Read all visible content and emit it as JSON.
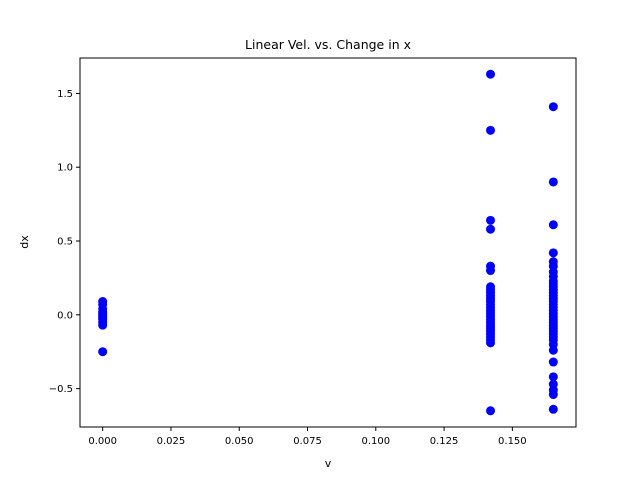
{
  "chart_data": {
    "type": "scatter",
    "title": "Linear Vel. vs. Change in x",
    "xlabel": "v",
    "ylabel": "dx",
    "xlim": [
      -0.0083,
      0.1733
    ],
    "ylim": [
      -0.76,
      1.74
    ],
    "xticks": [
      0.0,
      0.025,
      0.05,
      0.075,
      0.1,
      0.125,
      0.15
    ],
    "xtick_labels": [
      "0.000",
      "0.025",
      "0.050",
      "0.075",
      "0.100",
      "0.125",
      "0.150"
    ],
    "yticks": [
      -0.5,
      0.0,
      0.5,
      1.0,
      1.5
    ],
    "ytick_labels": [
      "−0.5",
      "0.0",
      "0.5",
      "1.0",
      "1.5"
    ],
    "grid": false,
    "marker_color": "#0000ff",
    "series": [
      {
        "points": [
          [
            0.0,
            0.09
          ],
          [
            0.0,
            0.07
          ],
          [
            0.0,
            0.04
          ],
          [
            0.0,
            0.02
          ],
          [
            0.0,
            0.01
          ],
          [
            0.0,
            0.0
          ],
          [
            0.0,
            -0.01
          ],
          [
            0.0,
            -0.02
          ],
          [
            0.0,
            -0.03
          ],
          [
            0.0,
            -0.05
          ],
          [
            0.0,
            -0.07
          ],
          [
            0.0,
            -0.25
          ],
          [
            0.142,
            1.63
          ],
          [
            0.142,
            1.25
          ],
          [
            0.142,
            0.64
          ],
          [
            0.142,
            0.58
          ],
          [
            0.142,
            0.33
          ],
          [
            0.142,
            0.3
          ],
          [
            0.142,
            0.19
          ],
          [
            0.142,
            0.17
          ],
          [
            0.142,
            0.15
          ],
          [
            0.142,
            0.13
          ],
          [
            0.142,
            0.11
          ],
          [
            0.142,
            0.09
          ],
          [
            0.142,
            0.07
          ],
          [
            0.142,
            0.05
          ],
          [
            0.142,
            0.03
          ],
          [
            0.142,
            0.01
          ],
          [
            0.142,
            -0.01
          ],
          [
            0.142,
            -0.03
          ],
          [
            0.142,
            -0.05
          ],
          [
            0.142,
            -0.07
          ],
          [
            0.142,
            -0.09
          ],
          [
            0.142,
            -0.11
          ],
          [
            0.142,
            -0.13
          ],
          [
            0.142,
            -0.15
          ],
          [
            0.142,
            -0.17
          ],
          [
            0.142,
            -0.19
          ],
          [
            0.142,
            -0.65
          ],
          [
            0.165,
            1.41
          ],
          [
            0.165,
            0.9
          ],
          [
            0.165,
            0.61
          ],
          [
            0.165,
            0.42
          ],
          [
            0.165,
            0.36
          ],
          [
            0.165,
            0.33
          ],
          [
            0.165,
            0.29
          ],
          [
            0.165,
            0.26
          ],
          [
            0.165,
            0.23
          ],
          [
            0.165,
            0.21
          ],
          [
            0.165,
            0.19
          ],
          [
            0.165,
            0.17
          ],
          [
            0.165,
            0.15
          ],
          [
            0.165,
            0.13
          ],
          [
            0.165,
            0.11
          ],
          [
            0.165,
            0.09
          ],
          [
            0.165,
            0.07
          ],
          [
            0.165,
            0.05
          ],
          [
            0.165,
            0.03
          ],
          [
            0.165,
            0.01
          ],
          [
            0.165,
            -0.01
          ],
          [
            0.165,
            -0.03
          ],
          [
            0.165,
            -0.05
          ],
          [
            0.165,
            -0.07
          ],
          [
            0.165,
            -0.09
          ],
          [
            0.165,
            -0.11
          ],
          [
            0.165,
            -0.13
          ],
          [
            0.165,
            -0.15
          ],
          [
            0.165,
            -0.17
          ],
          [
            0.165,
            -0.2
          ],
          [
            0.165,
            -0.24
          ],
          [
            0.165,
            -0.32
          ],
          [
            0.165,
            -0.42
          ],
          [
            0.165,
            -0.47
          ],
          [
            0.165,
            -0.51
          ],
          [
            0.165,
            -0.54
          ],
          [
            0.165,
            -0.64
          ]
        ]
      }
    ]
  }
}
